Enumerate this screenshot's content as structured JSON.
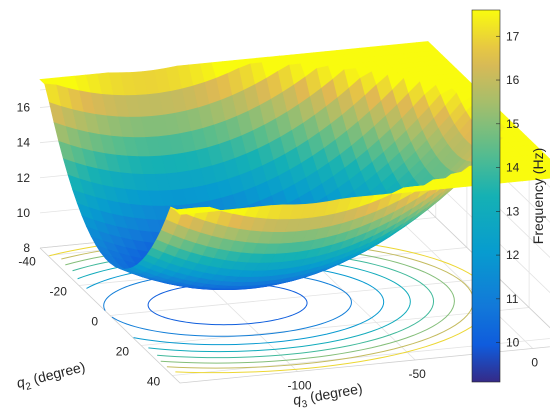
{
  "chart_data": {
    "type": "surface",
    "colormap": "parula",
    "surface_model": "f = 9.3 + 8.2*((q3 + 100)/110)^2 + 8.2*(q2/45)^2 - 0.9*(q2/45)*((q3+100)/110)",
    "axes": {
      "q3": {
        "ticks": [
          -100,
          -50,
          0
        ],
        "range": [
          -150,
          15
        ]
      },
      "q2": {
        "ticks": [
          -40,
          -20,
          0,
          20,
          40
        ],
        "range": [
          -45,
          45
        ]
      },
      "z": {
        "ticks": [
          8,
          10,
          12,
          14,
          16
        ],
        "range": [
          8,
          17
        ]
      }
    },
    "labels": {
      "q2_label_main": "q",
      "q2_label_sub": "2",
      "q2_label_unit": " (degree)",
      "q3_label_main": "q",
      "q3_label_sub": "3",
      "q3_label_unit": " (degree)",
      "colorbar_label": "Frequency (Hz)"
    },
    "colorbar": {
      "ticks": [
        10,
        11,
        12,
        13,
        14,
        15,
        16,
        17
      ],
      "range": [
        9.1,
        17.6
      ]
    },
    "contour_levels": [
      10,
      11,
      12,
      13,
      14,
      15,
      16,
      17
    ],
    "grid": true
  }
}
